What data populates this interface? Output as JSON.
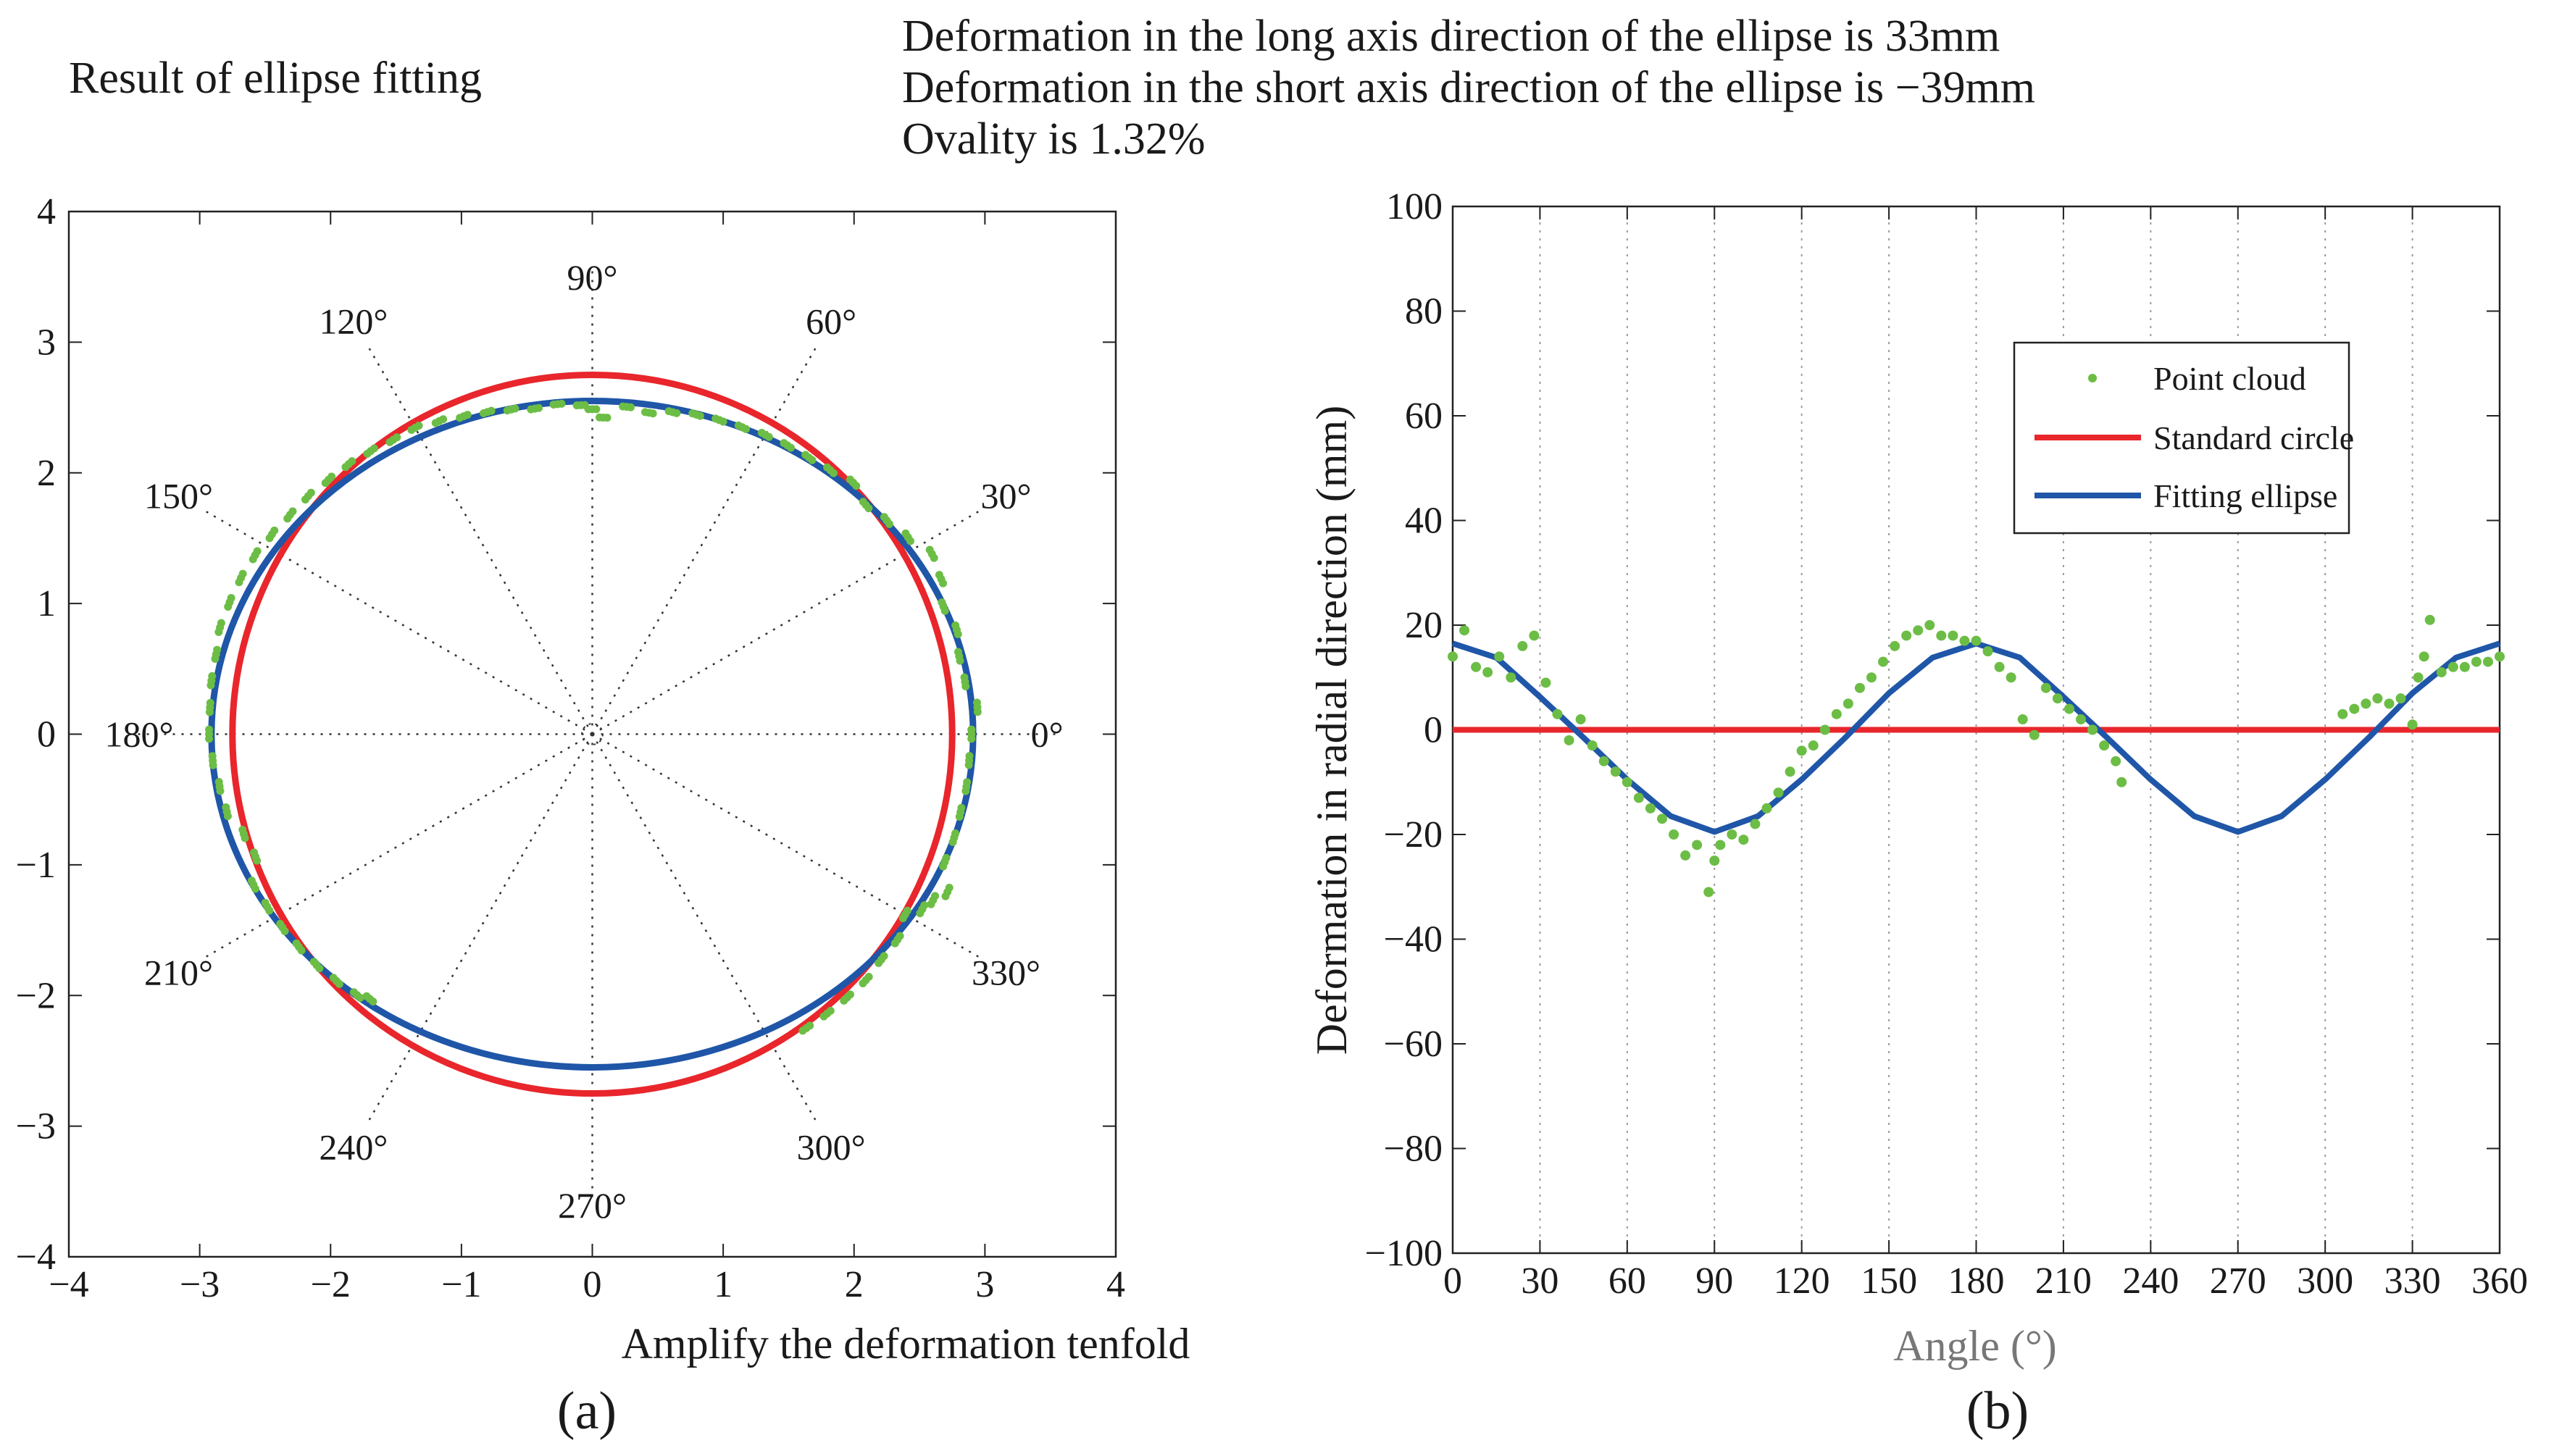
{
  "header": {
    "left_title": "Result of ellipse fitting",
    "lines": [
      "Deformation in the long axis direction of the ellipse is 33mm",
      "Deformation in the short axis direction of the ellipse is −39mm",
      "Ovality is 1.32%"
    ]
  },
  "colors": {
    "point_cloud": "#6cbd45",
    "standard_circle": "#e8262b",
    "fitting_ellipse": "#1f56a8",
    "grid": "#666666"
  },
  "chart_data": [
    {
      "type": "scatter",
      "title": "Result of ellipse fitting",
      "xlabel": "Amplify the deformation tenfold",
      "ylabel": "",
      "xlim": [
        -4,
        4
      ],
      "ylim": [
        -4,
        4
      ],
      "xticks": [
        -4,
        -3,
        -2,
        -1,
        0,
        1,
        2,
        3,
        4
      ],
      "yticks": [
        -4,
        -3,
        -2,
        -1,
        0,
        1,
        2,
        3,
        4
      ],
      "xtick_labels": [
        "−4",
        "−3",
        "−2",
        "−1",
        "0",
        "1",
        "2",
        "3",
        "4"
      ],
      "ytick_labels": [
        "−4",
        "−3",
        "−2",
        "−1",
        "0",
        "1",
        "2",
        "3",
        "4"
      ],
      "panel_label": "(a)",
      "polar_angle_labels": [
        "0°",
        "30°",
        "60°",
        "90°",
        "120°",
        "150°",
        "180°",
        "210°",
        "240°",
        "270°",
        "300°",
        "330°"
      ],
      "standard_circle": {
        "radius": 2.75
      },
      "fitting_ellipse": {
        "semi_x": 2.91,
        "semi_y": 2.55
      }
    },
    {
      "type": "line",
      "xlabel": "Angle (°)",
      "ylabel": "Deformation in radial direction (mm)",
      "xlim": [
        0,
        360
      ],
      "ylim": [
        -100,
        100
      ],
      "xticks": [
        0,
        30,
        60,
        90,
        120,
        150,
        180,
        210,
        240,
        270,
        300,
        330,
        360
      ],
      "yticks": [
        -100,
        -80,
        -60,
        -40,
        -20,
        0,
        20,
        40,
        60,
        80,
        100
      ],
      "xtick_labels": [
        "0",
        "30",
        "60",
        "90",
        "120",
        "150",
        "180",
        "210",
        "240",
        "270",
        "300",
        "330",
        "360"
      ],
      "ytick_labels": [
        "−100",
        "−80",
        "−60",
        "−40",
        "−20",
        "0",
        "20",
        "40",
        "60",
        "80",
        "100"
      ],
      "panel_label": "(b)",
      "legend": [
        "Point cloud",
        "Standard circle",
        "Fitting ellipse"
      ],
      "legend_position": "top-right",
      "standard_circle": {
        "value": 0
      },
      "fitting_ellipse": {
        "x": [
          0,
          15,
          30,
          45,
          60,
          75,
          90,
          105,
          120,
          135,
          150,
          165,
          180,
          195,
          210,
          225,
          240,
          255,
          270,
          285,
          300,
          315,
          330,
          345,
          360
        ],
        "y": [
          16.5,
          13.8,
          6.3,
          -1.5,
          -9.5,
          -16.5,
          -19.5,
          -16.5,
          -9.5,
          -1.5,
          7.0,
          13.8,
          16.5,
          13.8,
          6.3,
          -1.5,
          -9.5,
          -16.5,
          -19.5,
          -16.5,
          -9.5,
          -1.5,
          7.0,
          13.8,
          16.5
        ]
      },
      "point_cloud": [
        [
          0,
          14
        ],
        [
          4,
          19
        ],
        [
          8,
          12
        ],
        [
          12,
          11
        ],
        [
          16,
          14
        ],
        [
          20,
          10
        ],
        [
          24,
          16
        ],
        [
          28,
          18
        ],
        [
          32,
          9
        ],
        [
          36,
          3
        ],
        [
          40,
          -2
        ],
        [
          44,
          2
        ],
        [
          48,
          -3
        ],
        [
          52,
          -6
        ],
        [
          56,
          -8
        ],
        [
          60,
          -10
        ],
        [
          64,
          -13
        ],
        [
          68,
          -15
        ],
        [
          72,
          -17
        ],
        [
          76,
          -20
        ],
        [
          80,
          -24
        ],
        [
          84,
          -22
        ],
        [
          88,
          -31
        ],
        [
          90,
          -25
        ],
        [
          92,
          -22
        ],
        [
          96,
          -20
        ],
        [
          100,
          -21
        ],
        [
          104,
          -18
        ],
        [
          108,
          -15
        ],
        [
          112,
          -12
        ],
        [
          116,
          -8
        ],
        [
          120,
          -4
        ],
        [
          124,
          -3
        ],
        [
          128,
          0
        ],
        [
          132,
          3
        ],
        [
          136,
          5
        ],
        [
          140,
          8
        ],
        [
          144,
          10
        ],
        [
          148,
          13
        ],
        [
          152,
          16
        ],
        [
          156,
          18
        ],
        [
          160,
          19
        ],
        [
          164,
          20
        ],
        [
          168,
          18
        ],
        [
          172,
          18
        ],
        [
          176,
          17
        ],
        [
          180,
          17
        ],
        [
          184,
          15
        ],
        [
          188,
          12
        ],
        [
          192,
          10
        ],
        [
          196,
          2
        ],
        [
          200,
          -1
        ],
        [
          204,
          8
        ],
        [
          208,
          6
        ],
        [
          212,
          4
        ],
        [
          216,
          2
        ],
        [
          220,
          0
        ],
        [
          224,
          -3
        ],
        [
          228,
          -6
        ],
        [
          230,
          -10
        ],
        [
          306,
          3
        ],
        [
          310,
          4
        ],
        [
          314,
          5
        ],
        [
          318,
          6
        ],
        [
          322,
          5
        ],
        [
          326,
          6
        ],
        [
          330,
          1
        ],
        [
          332,
          10
        ],
        [
          334,
          14
        ],
        [
          336,
          21
        ],
        [
          340,
          11
        ],
        [
          344,
          12
        ],
        [
          348,
          12
        ],
        [
          352,
          13
        ],
        [
          356,
          13
        ],
        [
          360,
          14
        ]
      ]
    }
  ]
}
